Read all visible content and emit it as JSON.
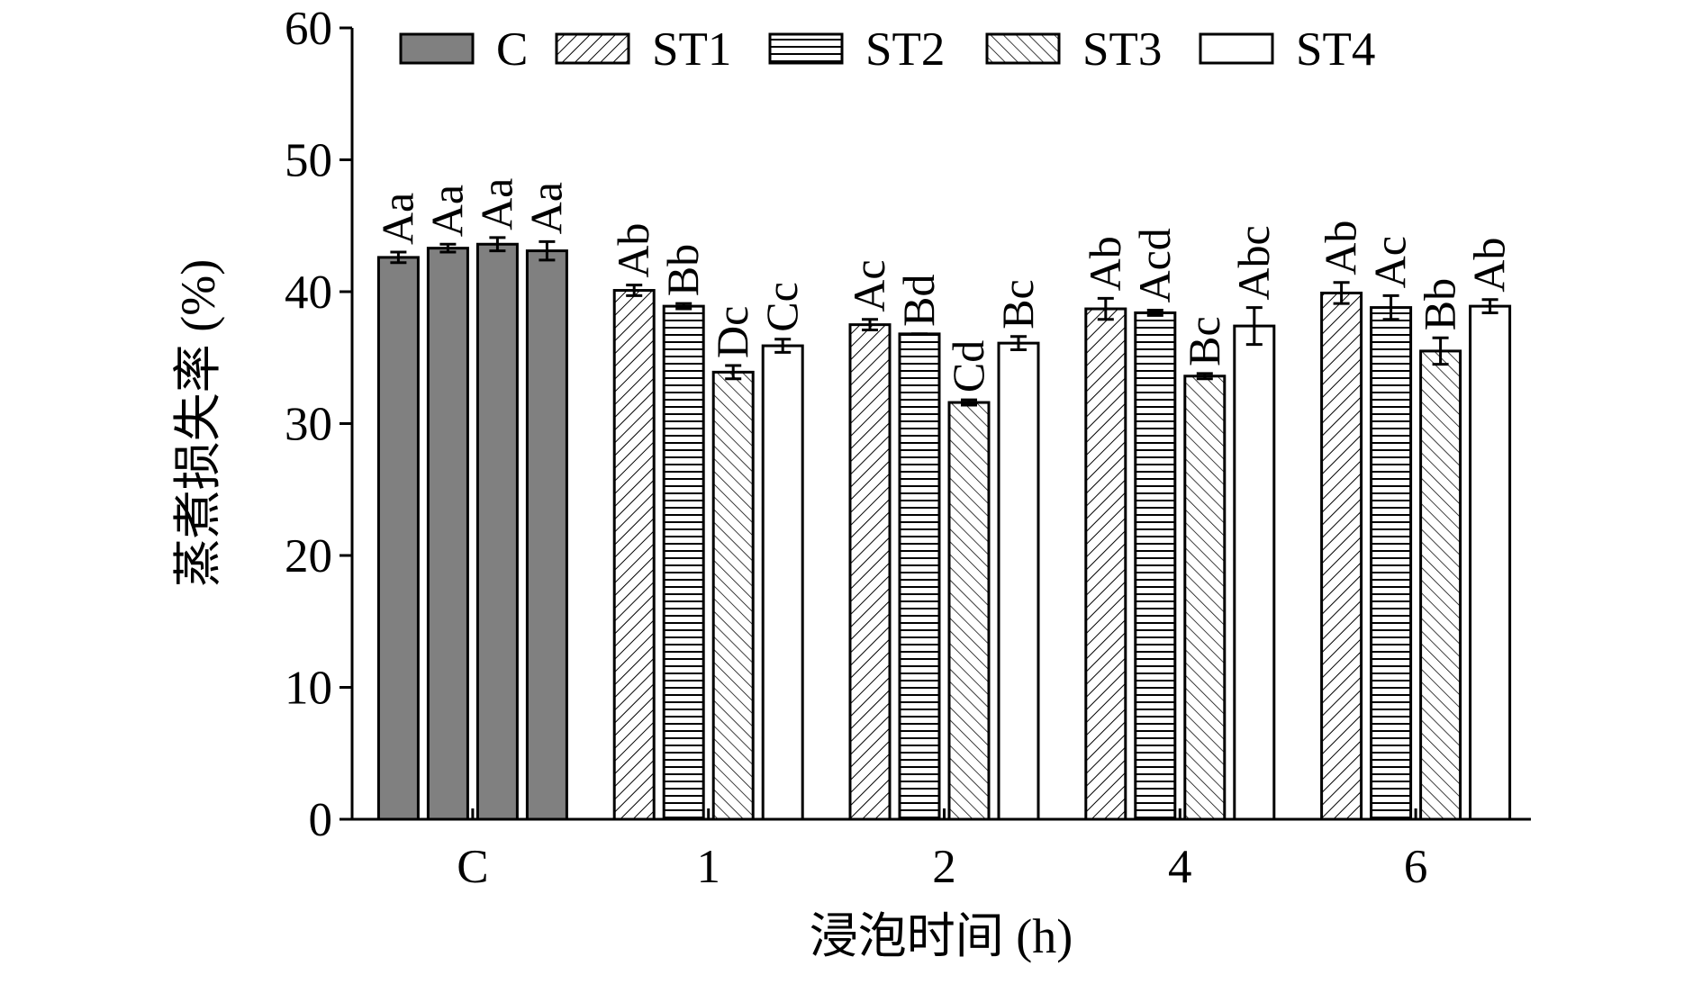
{
  "chart_data": {
    "type": "bar",
    "xlabel": "浸泡时间 (h)",
    "ylabel": "蒸煮损失率 (%)",
    "categories": [
      "C",
      "1",
      "2",
      "4",
      "6"
    ],
    "control": {
      "name": "C",
      "color": "#808080"
    },
    "series": [
      {
        "name": "ST1",
        "color": "#ffffff",
        "hatch": "diagonal",
        "values": [
          42.6,
          40.1,
          37.5,
          38.7,
          39.9
        ],
        "errors": [
          0.4,
          0.4,
          0.4,
          0.8,
          0.8
        ],
        "annotations": [
          "Aa",
          "Ab",
          "Ac",
          "Ab",
          "Ab"
        ]
      },
      {
        "name": "ST2",
        "color": "#ffffff",
        "hatch": "horizontal",
        "values": [
          43.3,
          38.9,
          36.8,
          38.4,
          38.8
        ],
        "errors": [
          0.3,
          0.2,
          0,
          0.2,
          0.9
        ],
        "annotations": [
          "Aa",
          "Bb",
          "Bd",
          "Acd",
          "Ac"
        ]
      },
      {
        "name": "ST3",
        "color": "#ffffff",
        "hatch": "backslash",
        "values": [
          43.6,
          33.9,
          31.6,
          33.6,
          35.5
        ],
        "errors": [
          0.5,
          0.5,
          0.2,
          0.2,
          1.0
        ],
        "annotations": [
          "Aa",
          "Dc",
          "Cd",
          "Bc",
          "Bb"
        ]
      },
      {
        "name": "ST4",
        "color": "#ffffff",
        "hatch": "none",
        "values": [
          43.1,
          35.9,
          36.1,
          37.4,
          38.9
        ],
        "errors": [
          0.7,
          0.5,
          0.5,
          1.4,
          0.5
        ],
        "annotations": [
          "Aa",
          "Cc",
          "Bc",
          "Abc",
          "Ab"
        ]
      }
    ],
    "ylim": [
      0,
      60
    ],
    "yticks": [
      0,
      10,
      20,
      30,
      40,
      50,
      60
    ],
    "legend": "top"
  }
}
